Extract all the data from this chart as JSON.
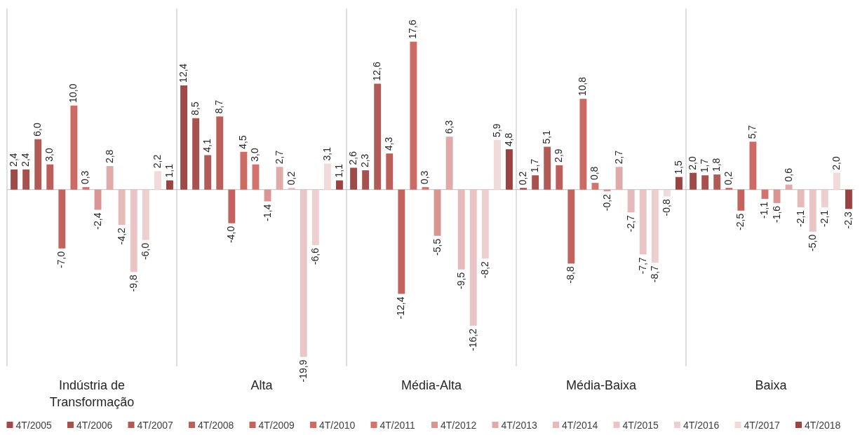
{
  "chart_data": {
    "type": "bar",
    "categories": [
      "Indústria de Transformação",
      "Alta",
      "Média-Alta",
      "Média-Baixa",
      "Baixa"
    ],
    "legend": "bottom",
    "series": [
      {
        "name": "4T/2005",
        "color": "#9e4a48",
        "values": [
          2.4,
          12.4,
          2.6,
          0.2,
          2.0
        ],
        "value_labels": [
          "2,4",
          "12,4",
          "2,6",
          "0,2",
          "2,0"
        ]
      },
      {
        "name": "4T/2006",
        "color": "#a8524f",
        "values": [
          2.4,
          8.5,
          2.3,
          1.7,
          1.7
        ],
        "value_labels": [
          "2,4",
          "8,5",
          "2,3",
          "1,7",
          "1,7"
        ]
      },
      {
        "name": "4T/2007",
        "color": "#b25a56",
        "values": [
          6.0,
          4.1,
          12.6,
          5.1,
          1.8
        ],
        "value_labels": [
          "6,0",
          "4,1",
          "12,6",
          "5,1",
          "1,8"
        ]
      },
      {
        "name": "4T/2008",
        "color": "#bc5f5a",
        "values": [
          3.0,
          8.7,
          4.3,
          2.9,
          0.2
        ],
        "value_labels": [
          "3,0",
          "8,7",
          "4,3",
          "2,9",
          "0,2"
        ]
      },
      {
        "name": "4T/2009",
        "color": "#c4625d",
        "values": [
          -7.0,
          -4.0,
          -12.4,
          -8.8,
          -2.5
        ],
        "value_labels": [
          "-7,0",
          "-4,0",
          "-12,4",
          "-8,8",
          "-2,5"
        ]
      },
      {
        "name": "4T/2010",
        "color": "#cc6a64",
        "values": [
          10.0,
          4.5,
          17.6,
          10.8,
          5.7
        ],
        "value_labels": [
          "10,0",
          "4,5",
          "17,6",
          "10,8",
          "5,7"
        ]
      },
      {
        "name": "4T/2011",
        "color": "#d4736d",
        "values": [
          0.3,
          3.0,
          0.3,
          0.8,
          -1.1
        ],
        "value_labels": [
          "0,3",
          "3,0",
          "0,3",
          "0,8",
          "-1,1"
        ]
      },
      {
        "name": "4T/2012",
        "color": "#d99593",
        "values": [
          -2.4,
          -1.4,
          -5.5,
          -0.2,
          -1.6
        ],
        "value_labels": [
          "-2,4",
          "-1,4",
          "-5,5",
          "-0,2",
          "-1,6"
        ]
      },
      {
        "name": "4T/2013",
        "color": "#dfaaa8",
        "values": [
          2.8,
          2.7,
          6.3,
          2.7,
          0.6
        ],
        "value_labels": [
          "2,8",
          "2,7",
          "6,3",
          "2,7",
          "0,6"
        ]
      },
      {
        "name": "4T/2014",
        "color": "#e5baba",
        "values": [
          -4.2,
          0.2,
          -9.5,
          -2.7,
          -2.1
        ],
        "value_labels": [
          "-4,2",
          "0,2",
          "-9,5",
          "-2,7",
          "-2,1"
        ]
      },
      {
        "name": "4T/2015",
        "color": "#e9c5c5",
        "values": [
          -9.8,
          -19.9,
          -16.2,
          -7.7,
          -5.0
        ],
        "value_labels": [
          "-9,8",
          "-19,9",
          "-16,2",
          "-7,7",
          "-5,0"
        ]
      },
      {
        "name": "4T/2016",
        "color": "#edcfcf",
        "values": [
          -6.0,
          -6.6,
          -8.2,
          -8.7,
          -2.1
        ],
        "value_labels": [
          "-6,0",
          "-6,6",
          "-8,2",
          "-8,7",
          "-2,1"
        ]
      },
      {
        "name": "4T/2017",
        "color": "#f1dada",
        "values": [
          2.2,
          3.1,
          5.9,
          -0.8,
          2.0
        ],
        "value_labels": [
          "2,2",
          "3,1",
          "5,9",
          "-0,8",
          "2,0"
        ]
      },
      {
        "name": "4T/2018",
        "color": "#9b4341",
        "values": [
          1.1,
          1.1,
          4.8,
          1.5,
          -2.3
        ],
        "value_labels": [
          "1,1",
          "1,1",
          "4,8",
          "1,5",
          "-2,3"
        ]
      }
    ]
  }
}
